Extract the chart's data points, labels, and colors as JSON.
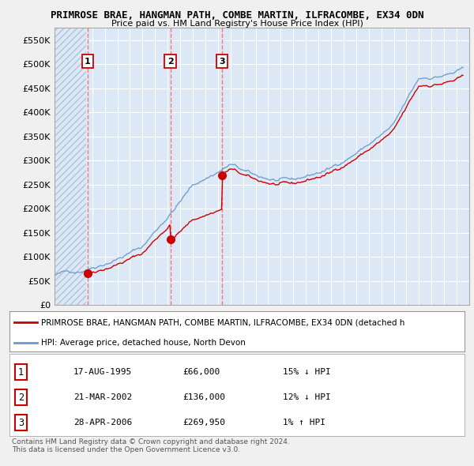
{
  "title": "PRIMROSE BRAE, HANGMAN PATH, COMBE MARTIN, ILFRACOMBE, EX34 0DN",
  "subtitle": "Price paid vs. HM Land Registry's House Price Index (HPI)",
  "ylim": [
    0,
    575000
  ],
  "yticks": [
    0,
    50000,
    100000,
    150000,
    200000,
    250000,
    300000,
    350000,
    400000,
    450000,
    500000,
    550000
  ],
  "ytick_labels": [
    "£0",
    "£50K",
    "£100K",
    "£150K",
    "£200K",
    "£250K",
    "£300K",
    "£350K",
    "£400K",
    "£450K",
    "£500K",
    "£550K"
  ],
  "background_color": "#f0f0f0",
  "plot_bg_color": "#dce8f5",
  "grid_color": "#ffffff",
  "transactions": [
    {
      "label": "1",
      "date_x": 1995.64,
      "price": 66000,
      "date_str": "17-AUG-1995"
    },
    {
      "label": "2",
      "date_x": 2002.22,
      "price": 136000,
      "date_str": "21-MAR-2002"
    },
    {
      "label": "3",
      "date_x": 2006.32,
      "price": 269950,
      "date_str": "28-APR-2006"
    }
  ],
  "legend_label1": "PRIMROSE BRAE, HANGMAN PATH, COMBE MARTIN, ILFRACOMBE, EX34 0DN (detached h",
  "legend_label2": "HPI: Average price, detached house, North Devon",
  "table_rows": [
    [
      "1",
      "17-AUG-1995",
      "£66,000",
      "15% ↓ HPI"
    ],
    [
      "2",
      "21-MAR-2002",
      "£136,000",
      "12% ↓ HPI"
    ],
    [
      "3",
      "28-APR-2006",
      "£269,950",
      "1% ↑ HPI"
    ]
  ],
  "footer": "Contains HM Land Registry data © Crown copyright and database right 2024.\nThis data is licensed under the Open Government Licence v3.0.",
  "red_color": "#cc0000",
  "blue_color": "#6699cc",
  "dashed_color": "#ff6666",
  "hatch_color": "#b0c4d8",
  "xlim_start": 1993,
  "xlim_end": 2026
}
